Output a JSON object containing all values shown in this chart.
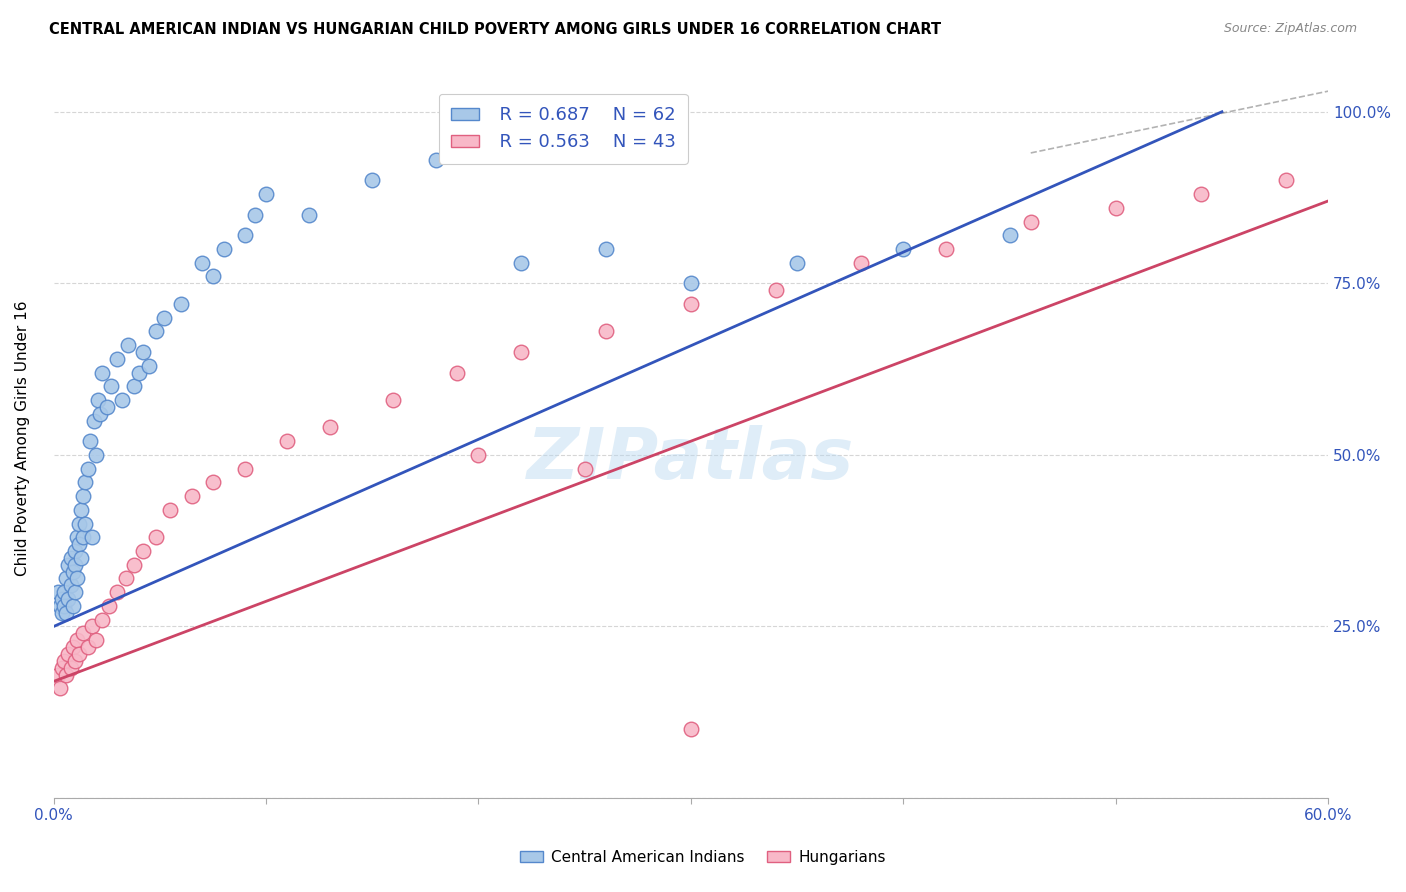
{
  "title": "CENTRAL AMERICAN INDIAN VS HUNGARIAN CHILD POVERTY AMONG GIRLS UNDER 16 CORRELATION CHART",
  "source": "Source: ZipAtlas.com",
  "ylabel": "Child Poverty Among Girls Under 16",
  "xlim": [
    0.0,
    0.6
  ],
  "ylim": [
    0.0,
    1.05
  ],
  "x_ticks": [
    0.0,
    0.1,
    0.2,
    0.3,
    0.4,
    0.5,
    0.6
  ],
  "x_tick_labels": [
    "0.0%",
    "",
    "",
    "",
    "",
    "",
    "60.0%"
  ],
  "y_ticks": [
    0.0,
    0.25,
    0.5,
    0.75,
    1.0
  ],
  "y_tick_labels": [
    "",
    "25.0%",
    "50.0%",
    "75.0%",
    "100.0%"
  ],
  "legend_R1": "R = 0.687",
  "legend_N1": "N = 62",
  "legend_R2": "R = 0.563",
  "legend_N2": "N = 43",
  "blue_scatter_color": "#a8c8e8",
  "blue_edge_color": "#5588cc",
  "pink_scatter_color": "#f8b8c8",
  "pink_edge_color": "#e06080",
  "line_blue": "#3355bb",
  "line_pink": "#cc4466",
  "text_color": "#3355bb",
  "watermark": "ZIPatlas",
  "blue_scatter_x": [
    0.002,
    0.003,
    0.004,
    0.004,
    0.005,
    0.005,
    0.006,
    0.006,
    0.007,
    0.007,
    0.008,
    0.008,
    0.009,
    0.009,
    0.01,
    0.01,
    0.01,
    0.011,
    0.011,
    0.012,
    0.012,
    0.013,
    0.013,
    0.014,
    0.014,
    0.015,
    0.015,
    0.016,
    0.017,
    0.018,
    0.019,
    0.02,
    0.021,
    0.022,
    0.023,
    0.025,
    0.027,
    0.03,
    0.032,
    0.035,
    0.038,
    0.04,
    0.042,
    0.045,
    0.048,
    0.052,
    0.06,
    0.07,
    0.075,
    0.08,
    0.09,
    0.095,
    0.1,
    0.12,
    0.15,
    0.18,
    0.22,
    0.26,
    0.3,
    0.35,
    0.4,
    0.45
  ],
  "blue_scatter_y": [
    0.3,
    0.28,
    0.29,
    0.27,
    0.3,
    0.28,
    0.32,
    0.27,
    0.34,
    0.29,
    0.35,
    0.31,
    0.33,
    0.28,
    0.36,
    0.34,
    0.3,
    0.38,
    0.32,
    0.4,
    0.37,
    0.42,
    0.35,
    0.44,
    0.38,
    0.46,
    0.4,
    0.48,
    0.52,
    0.38,
    0.55,
    0.5,
    0.58,
    0.56,
    0.62,
    0.57,
    0.6,
    0.64,
    0.58,
    0.66,
    0.6,
    0.62,
    0.65,
    0.63,
    0.68,
    0.7,
    0.72,
    0.78,
    0.76,
    0.8,
    0.82,
    0.85,
    0.88,
    0.85,
    0.9,
    0.93,
    0.78,
    0.8,
    0.75,
    0.78,
    0.8,
    0.82
  ],
  "pink_scatter_x": [
    0.002,
    0.003,
    0.004,
    0.005,
    0.006,
    0.007,
    0.008,
    0.009,
    0.01,
    0.011,
    0.012,
    0.014,
    0.016,
    0.018,
    0.02,
    0.023,
    0.026,
    0.03,
    0.034,
    0.038,
    0.042,
    0.048,
    0.055,
    0.065,
    0.075,
    0.09,
    0.11,
    0.13,
    0.16,
    0.19,
    0.22,
    0.26,
    0.3,
    0.34,
    0.38,
    0.42,
    0.46,
    0.5,
    0.54,
    0.58,
    0.2,
    0.25,
    0.3
  ],
  "pink_scatter_y": [
    0.18,
    0.16,
    0.19,
    0.2,
    0.18,
    0.21,
    0.19,
    0.22,
    0.2,
    0.23,
    0.21,
    0.24,
    0.22,
    0.25,
    0.23,
    0.26,
    0.28,
    0.3,
    0.32,
    0.34,
    0.36,
    0.38,
    0.42,
    0.44,
    0.46,
    0.48,
    0.52,
    0.54,
    0.58,
    0.62,
    0.65,
    0.68,
    0.72,
    0.74,
    0.78,
    0.8,
    0.84,
    0.86,
    0.88,
    0.9,
    0.5,
    0.48,
    0.1
  ],
  "blue_line_x": [
    0.0,
    0.55
  ],
  "blue_line_y": [
    0.25,
    1.0
  ],
  "pink_line_x": [
    0.0,
    0.6
  ],
  "pink_line_y": [
    0.17,
    0.87
  ],
  "dashed_line_x": [
    0.46,
    0.6
  ],
  "dashed_line_y": [
    0.94,
    1.03
  ]
}
